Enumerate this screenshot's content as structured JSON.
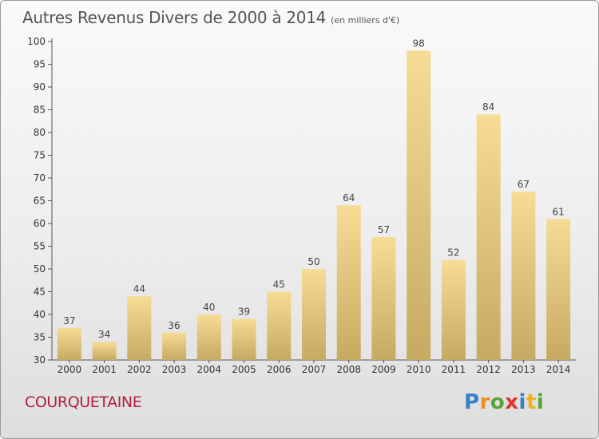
{
  "title": "Autres Revenus Divers de 2000 à 2014",
  "unit": "(en milliers d'€)",
  "commune": "COURQUETAINE",
  "logo": {
    "text": "Proxiti",
    "brand_colors": [
      "#3a7fc4",
      "#f08c1a",
      "#57a43a",
      "#e4332b",
      "#f2b21a"
    ]
  },
  "colors": {
    "bar_top": "#f7dc96",
    "bar_bottom": "#c6aa62",
    "title": "#555555",
    "commune": "#b2203e"
  },
  "chart_data": {
    "type": "bar",
    "title": "Autres Revenus Divers de 2000 à 2014",
    "categories": [
      "2000",
      "2001",
      "2002",
      "2003",
      "2004",
      "2005",
      "2006",
      "2007",
      "2008",
      "2009",
      "2010",
      "2011",
      "2012",
      "2013",
      "2014"
    ],
    "values": [
      37,
      34,
      44,
      36,
      40,
      39,
      45,
      50,
      64,
      57,
      98,
      52,
      84,
      67,
      61
    ],
    "ylim": [
      30,
      100
    ],
    "yticks": [
      30,
      35,
      40,
      45,
      50,
      55,
      60,
      65,
      70,
      75,
      80,
      85,
      90,
      95,
      100
    ],
    "grid": false,
    "data_labels": true
  }
}
